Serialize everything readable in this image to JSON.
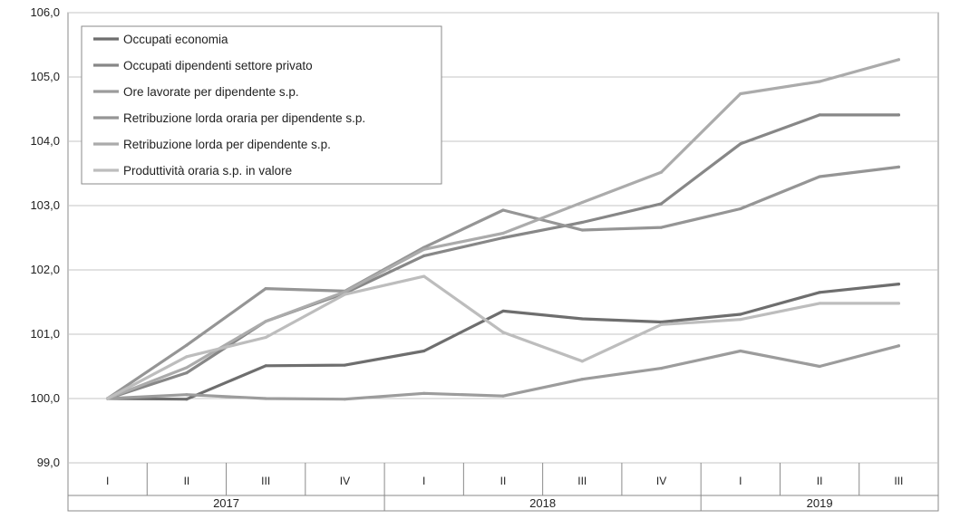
{
  "chart_data": {
    "type": "line",
    "ylim": [
      99.0,
      106.0
    ],
    "yticks": [
      "99,0",
      "100,0",
      "101,0",
      "102,0",
      "103,0",
      "104,0",
      "105,0",
      "106,0"
    ],
    "quarters": [
      "I",
      "II",
      "III",
      "IV",
      "I",
      "II",
      "III",
      "IV",
      "I",
      "II",
      "III"
    ],
    "years": [
      {
        "label": "2017",
        "quarters": 4
      },
      {
        "label": "2018",
        "quarters": 4
      },
      {
        "label": "2019",
        "quarters": 3
      }
    ],
    "grid": true,
    "legend_position": "top-left",
    "series": [
      {
        "name": "Occupati economia",
        "color": "#6e6e6e",
        "values": [
          100.0,
          99.99,
          100.51,
          100.52,
          100.74,
          101.36,
          101.24,
          101.19,
          101.31,
          101.65,
          101.78
        ]
      },
      {
        "name": "Occupati dipendenti settore privato",
        "color": "#878787",
        "values": [
          100.0,
          100.4,
          101.2,
          101.64,
          102.22,
          102.5,
          102.74,
          103.03,
          103.96,
          104.41,
          104.41
        ]
      },
      {
        "name": "Ore lavorate per dipendente s.p.",
        "color": "#9c9c9c",
        "values": [
          100.0,
          100.06,
          100.0,
          99.99,
          100.08,
          100.04,
          100.3,
          100.47,
          100.74,
          100.5,
          100.82
        ]
      },
      {
        "name": "Retribuzione lorda oraria per dipendente s.p.",
        "color": "#959595",
        "values": [
          100.0,
          100.83,
          101.71,
          101.67,
          102.35,
          102.93,
          102.62,
          102.66,
          102.95,
          103.45,
          103.6
        ]
      },
      {
        "name": "Retribuzione lorda per dipendente s.p.",
        "color": "#ababab",
        "values": [
          100.0,
          100.48,
          101.2,
          101.66,
          102.32,
          102.57,
          103.05,
          103.52,
          104.74,
          104.93,
          105.27
        ]
      },
      {
        "name": "Produttività oraria s.p. in valore",
        "color": "#bdbdbd",
        "values": [
          100.0,
          100.65,
          100.95,
          101.62,
          101.9,
          101.03,
          100.58,
          101.15,
          101.23,
          101.48,
          101.48
        ]
      }
    ]
  }
}
